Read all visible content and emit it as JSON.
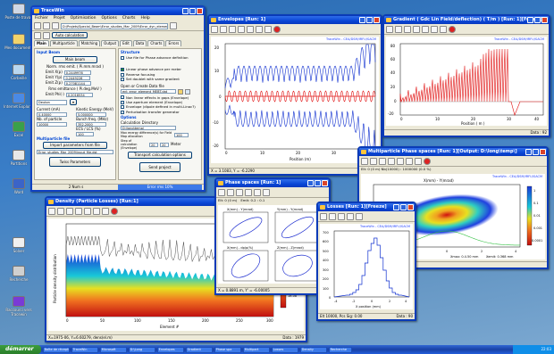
{
  "desktop": {
    "icons": [
      "Poste de travail",
      "Mes documents",
      "Corbeille",
      "Internet Explorer",
      "Excel",
      "Partitions",
      "Word",
      "Solver",
      "Recherche",
      "Raccourci vers Tracewin"
    ]
  },
  "main": {
    "title": "TraceWin",
    "menu": [
      "Fichier",
      "Projet",
      "Optimisation",
      "Options",
      "Charts",
      "Help"
    ],
    "path": "D:\\Projets\\Special_Beam\\Error_studies_Mar_2009\\Error_dyn_elements_MEBT_Linac",
    "auto_calc": "Auto calculation",
    "tabs": [
      "Main",
      "Multiparticle",
      "Matching",
      "Output",
      "Edit",
      "Data",
      "Charts",
      "Errors"
    ],
    "input_beam": "Input Beam",
    "main_beam_btn": "Main beam",
    "norm_rms_label": "Norm. rms emit. ( Pi.mm.mrad )",
    "emit_x_label": "Emit X(p)",
    "emit_x": "0.2449976",
    "emit_y_label": "Emit Y(p)",
    "emit_y": "0.2449226",
    "emit_z_label": "Emit Z(p)",
    "emit_z": "0.27081144",
    "rms_emit_z_label": "Rms emittance ( Pi.deg.MeV )",
    "emit_phi_label": "Emit Phi(·)",
    "emit_phi": "0.2018534",
    "particle": "Deuton",
    "current_label": "Current (mA)",
    "current": "0.40000",
    "energy_label": "Kinetic Energy (MeV)",
    "energy": "5.000000",
    "nbp_label": "Nb. of particle",
    "nbp": "10000",
    "bunch_label": "Bunch freq. (MHz)",
    "bunch": "352.2000",
    "ecs_label": "ECS / LCS (%)",
    "ecs": "100",
    "multipart_label": "Multiparticle file",
    "import_btn": "Import parameters from file",
    "multipart_file": "Error_studies_Mar_2009\\input_file.dst",
    "twiss_btn": "Twiss Parameters",
    "structure_label": "Structure",
    "use_file_phase": "Use file for Phase advance definition",
    "lin_phase": "Linear phase advance per meter",
    "reverse_focusing": "Reverse focusing",
    "same_gradient": "Set doublet with same gradient",
    "open_data_file": "Open or Create Data file",
    "data_file": "ent_error_element_MEBT.dat",
    "nonlinear": "Non linear effects in gaps (Envelope)",
    "aperture": "Use aperture element (Envelope)",
    "env_dm": "Envelope (dipole defined in multi-Linac?)",
    "pert_gen": "Perturbation transfer generator",
    "options_label": "Options",
    "calc_dir_label": "Calculation Directory",
    "calc_dir": "D:\\long\\temp\\",
    "max_energy": "Max energy difference(s) for Field Map allocation",
    "max_energy_val": "100",
    "step_label": "Step of calculation (Envelope)",
    "step_val1": "20",
    "step_val2": "20",
    "meter": "Meter",
    "transport_btn": "Transport calculation options",
    "send_btn": "Send project",
    "status_left": "2 Num s",
    "status_right": "Error rms 10%"
  },
  "env": {
    "title": "Envelopes [Run: 1]",
    "brand": "TraceWin - CEA/DSM/IRFU/SACM",
    "xlabel": "Position (m)",
    "ylabel": "X (mm)",
    "status": "X = 3.1083, Y = -6.2290",
    "x_ticks": [
      "0",
      "10",
      "20",
      "30",
      "40"
    ],
    "y_ticks": [
      "20",
      "10",
      "0",
      "-10",
      "-20"
    ]
  },
  "grad": {
    "title": "Gradient ( Gdc Lin Field/deflection) ( T/m ) [Run: 1][Freeze]",
    "brand": "TraceWin - CEA/DSM/IRFU/SACM",
    "xlabel": "Position ( m )",
    "ylabel": "Gradient ( T/m ) or (dB)(T)",
    "x_ticks": [
      "0",
      "10",
      "20",
      "30",
      "40"
    ],
    "y_ticks": [
      "80",
      "60",
      "40",
      "20",
      "0",
      "-20"
    ],
    "status": "Data : 92"
  },
  "phase": {
    "title": "Phase spaces [Run: 1]",
    "elem": "Elt: 0 (0 m)",
    "emit": "Emit: 0.2 : 0.1",
    "brand": "TraceWin - CEA/DSM/IRFU/SACM",
    "p1": "X(mm) - Y(mrad)",
    "p2": "Y(mm) - Y(mrad)",
    "p3": "X(mm) - dp/p(%)",
    "p4": "Z(mm) - Z(mrad)",
    "status": "X = 0.8891 m, Y' = -6.00005"
  },
  "part": {
    "title": "Multiparticle Phase spaces [Run: 1][Output: D:\\long\\temp\\]",
    "info": "Elt: 0 (0 m)   Nb(10000) : 1000000  (0.0 %)",
    "brand": "TraceWin - CEA/DSM/IRFU/SACM",
    "plot_title": "X(mm) - Y(mrad)",
    "scale": [
      "1",
      "0.1",
      "0.01",
      "0.001",
      "0.0001"
    ],
    "xt": [
      "-4",
      "-2",
      "0",
      "2",
      "4"
    ],
    "emit_line1": "Xmax: 0.4.50 mm",
    "emit_line2": "Xemit: 0.368 mm",
    "status": "X = 0.86, Y = 0.00"
  },
  "losses": {
    "title": "Losses [Run: 1][Freeze]",
    "brand": "TraceWin - CEA/DSM/IRFU/SACM",
    "xlabel": "X position (mm)",
    "ylabel": "Pcs. (%)",
    "xt": [
      "-4",
      "-2",
      "0",
      "2",
      "4"
    ],
    "yt": [
      "700",
      "600",
      "500",
      "400",
      "300",
      "200",
      "100",
      "0"
    ],
    "status": "Elt 10000, Pcs Sig: 0.00",
    "data": "Data : 90"
  },
  "density": {
    "title": "Density (Particle Losses) [Run:1]",
    "xlabel": "Element #",
    "ylabel": "Particle density distribution",
    "xt": [
      "0",
      "50",
      "100",
      "150",
      "200",
      "250",
      "300"
    ],
    "scale": [
      "1e-02",
      "1e-04",
      "1e-06",
      "1e-08"
    ],
    "status": "X=1975-06, Y=6.60279, dens(el.m)",
    "data": "Data : 1979"
  },
  "taskbar": {
    "start": "démarrer",
    "items": [
      "Boîte de réception",
      "TraceWin",
      "Microsoft",
      "D:\\Long",
      "Envelopes",
      "Gradient",
      "Phase spa",
      "Multipart",
      "Losses",
      "Density",
      "Recherche"
    ],
    "clock": "22:03"
  }
}
